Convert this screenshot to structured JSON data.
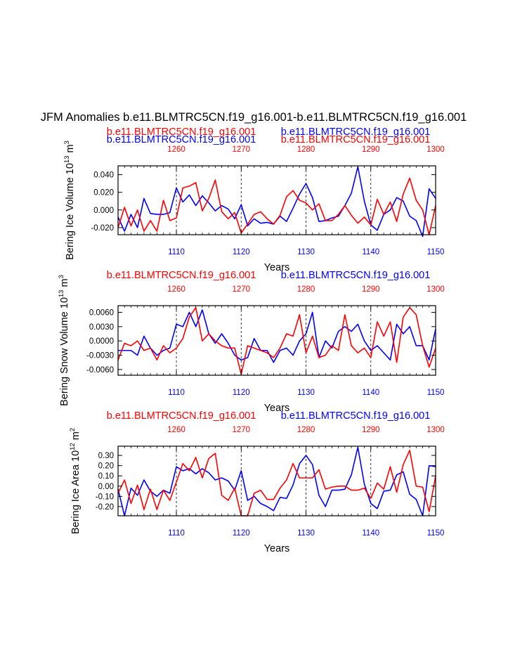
{
  "page_title": "JFM Anomalies b.e11.BLMTRC5CN.f19_g16.001-b.e11.BLMTRC5CN.f19_g16.001",
  "colors": {
    "blue": "#0000ff",
    "red": "#ff0000",
    "black": "#000000"
  },
  "chart_data": [
    {
      "type": "line",
      "title": "JFM Anomalies b.e11.BLMTRC5CN.f19_g16.001-b.e11.BLMTRC5CN.f19_g16.001",
      "ylabel": "Bering Ice Volume 10",
      "ylabel_exp": "13",
      "ylabel_unit": "m",
      "ylabel_unit_exp": "3",
      "xlabel": "Years",
      "top_labels": [
        {
          "text": "b.e11.BLMTRC5CN.f19_g16.001",
          "color": "red",
          "row": 0,
          "col": 0
        },
        {
          "text": "b.e11.BLMTRC5CN.f19_g16.001",
          "color": "blue",
          "row": 0,
          "col": 1
        },
        {
          "text": "b.e11.BLMTRC5CN.f19_g16.001",
          "color": "blue",
          "row": 1,
          "col": 0
        },
        {
          "text": "b.e11.BLMTRC5CN.f19_g16.001",
          "color": "red",
          "row": 1,
          "col": 1
        }
      ],
      "x_bottom": {
        "range": [
          1101,
          1150
        ],
        "ticks": [
          1110,
          1120,
          1130,
          1140,
          1150
        ],
        "tick_labels": [
          "1110",
          "1120",
          "1130",
          "1140",
          "1150"
        ]
      },
      "x_top": {
        "range": [
          1251,
          1300
        ],
        "ticks": [
          1260,
          1270,
          1280,
          1290,
          1300
        ],
        "tick_labels": [
          "1260",
          "1270",
          "1280",
          "1290",
          "1300"
        ]
      },
      "ylim": [
        -0.028,
        0.05
      ],
      "y_ticks": [
        0.04,
        0.02,
        0.0,
        -0.02
      ],
      "y_tick_labels": [
        "0.040",
        "0.020",
        "0.000",
        "-0.020"
      ],
      "series": [
        {
          "name": "b.e11.BLMTRC5CN.f19_g16.001 (years 1101-1150)",
          "color": "blue",
          "values": [
            -0.008,
            -0.024,
            -0.005,
            -0.02,
            0.013,
            -0.004,
            -0.005,
            -0.005,
            -0.003,
            0.025,
            0.009,
            0.017,
            0.005,
            0.016,
            0.008,
            -0.001,
            0.005,
            0.001,
            -0.01,
            0.006,
            -0.018,
            -0.01,
            -0.015,
            -0.014,
            -0.016,
            -0.007,
            -0.013,
            0.002,
            0.018,
            0.03,
            0.014,
            -0.013,
            -0.012,
            -0.009,
            -0.007,
            0.005,
            0.019,
            0.049,
            0.01,
            -0.017,
            -0.023,
            -0.005,
            0.0,
            0.014,
            0.01,
            -0.007,
            -0.012,
            -0.03,
            0.024,
            0.013
          ]
        },
        {
          "name": "b.e11.BLMTRC5CN.f19_g16.001 (years 1251-1300)",
          "color": "red",
          "values": [
            -0.02,
            0.003,
            -0.018,
            0.0,
            -0.024,
            -0.012,
            -0.024,
            0.011,
            -0.012,
            -0.009,
            0.025,
            0.027,
            0.031,
            -0.001,
            0.013,
            0.034,
            -0.002,
            -0.01,
            -0.003,
            -0.026,
            -0.016,
            -0.005,
            -0.002,
            -0.01,
            -0.016,
            -0.006,
            0.015,
            0.022,
            0.011,
            0.008,
            0.0,
            0.007,
            -0.012,
            -0.012,
            -0.005,
            0.005,
            -0.006,
            -0.015,
            -0.008,
            -0.017,
            0.012,
            -0.005,
            0.009,
            -0.013,
            0.018,
            0.036,
            0.011,
            0.0,
            -0.028,
            0.005
          ]
        }
      ]
    },
    {
      "type": "line",
      "ylabel": "Bering Snow Volume 10",
      "ylabel_exp": "13",
      "ylabel_unit": "m",
      "ylabel_unit_exp": "3",
      "xlabel": "Years",
      "top_labels": [
        {
          "text": "b.e11.BLMTRC5CN.f19_g16.001",
          "color": "red",
          "row": 0,
          "col": 0
        },
        {
          "text": "b.e11.BLMTRC5CN.f19_g16.001",
          "color": "blue",
          "row": 0,
          "col": 1
        }
      ],
      "x_bottom": {
        "range": [
          1101,
          1150
        ],
        "ticks": [
          1110,
          1120,
          1130,
          1140,
          1150
        ],
        "tick_labels": [
          "1110",
          "1120",
          "1130",
          "1140",
          "1150"
        ]
      },
      "x_top": {
        "range": [
          1251,
          1300
        ],
        "ticks": [
          1260,
          1270,
          1280,
          1290,
          1300
        ],
        "tick_labels": [
          "1260",
          "1270",
          "1280",
          "1290",
          "1300"
        ]
      },
      "ylim": [
        -0.0072,
        0.0074
      ],
      "y_ticks": [
        0.006,
        0.003,
        0.0,
        -0.003,
        -0.006
      ],
      "y_tick_labels": [
        "0.0060",
        "0.0030",
        "0.0000",
        "-0.0030",
        "-0.0060"
      ],
      "series": [
        {
          "name": "b.e11.BLMTRC5CN.f19_g16.001 (years 1101-1150)",
          "color": "blue",
          "values": [
            -0.002,
            -0.002,
            -0.002,
            -0.003,
            0.001,
            -0.0015,
            -0.003,
            -0.002,
            -0.0015,
            0.0035,
            0.003,
            0.006,
            0.003,
            0.0065,
            0.0015,
            -0.0005,
            0.0015,
            -0.0005,
            -0.003,
            -0.004,
            -0.0035,
            0.0005,
            -0.002,
            -0.002,
            -0.0045,
            -0.002,
            -0.0015,
            -0.003,
            0.0,
            0.0015,
            0.006,
            -0.0035,
            0.0,
            -0.0015,
            0.002,
            0.003,
            0.002,
            0.0035,
            0.0,
            -0.002,
            -0.001,
            -0.0025,
            -0.004,
            0.0035,
            0.0015,
            0.003,
            -0.001,
            -0.001,
            -0.004,
            0.0025
          ]
        },
        {
          "name": "b.e11.BLMTRC5CN.f19_g16.001 (years 1251-1300)",
          "color": "red",
          "values": [
            -0.004,
            -0.0005,
            -0.001,
            0.0,
            -0.002,
            -0.0015,
            -0.004,
            -0.001,
            -0.0025,
            -0.0015,
            0.0005,
            0.005,
            0.007,
            0.0,
            0.0015,
            0.0,
            -0.001,
            -0.0015,
            -0.0015,
            -0.007,
            -0.001,
            -0.0015,
            -0.002,
            -0.0025,
            -0.0035,
            -0.0015,
            0.0015,
            0.001,
            0.0055,
            -0.0025,
            0.001,
            -0.0035,
            -0.003,
            -0.001,
            -0.002,
            0.0055,
            -0.001,
            -0.0025,
            -0.0015,
            -0.0035,
            0.004,
            0.001,
            0.004,
            -0.0045,
            0.005,
            0.007,
            0.0055,
            -0.001,
            -0.0055,
            -0.0015
          ]
        }
      ]
    },
    {
      "type": "line",
      "ylabel": "Bering Ice Area 10",
      "ylabel_exp": "12",
      "ylabel_unit": "m",
      "ylabel_unit_exp": "2",
      "xlabel": "Years",
      "top_labels": [
        {
          "text": "b.e11.BLMTRC5CN.f19_g16.001",
          "color": "red",
          "row": 0,
          "col": 0
        },
        {
          "text": "b.e11.BLMTRC5CN.f19_g16.001",
          "color": "blue",
          "row": 0,
          "col": 1
        }
      ],
      "x_bottom": {
        "range": [
          1101,
          1150
        ],
        "ticks": [
          1110,
          1120,
          1130,
          1140,
          1150
        ],
        "tick_labels": [
          "1110",
          "1120",
          "1130",
          "1140",
          "1150"
        ]
      },
      "x_top": {
        "range": [
          1251,
          1300
        ],
        "ticks": [
          1260,
          1270,
          1280,
          1290,
          1300
        ],
        "tick_labels": [
          "1260",
          "1270",
          "1280",
          "1290",
          "1300"
        ]
      },
      "ylim": [
        -0.29,
        0.39
      ],
      "y_ticks": [
        0.3,
        0.2,
        0.1,
        0.0,
        -0.1,
        -0.2
      ],
      "y_tick_labels": [
        "0.30",
        "0.20",
        "0.10",
        "0.00",
        "-0.10",
        "-0.20"
      ],
      "series": [
        {
          "name": "b.e11.BLMTRC5CN.f19_g16.001 (years 1101-1150)",
          "color": "blue",
          "values": [
            -0.03,
            -0.29,
            -0.02,
            -0.09,
            0.06,
            -0.05,
            -0.1,
            -0.04,
            -0.07,
            0.19,
            0.15,
            0.17,
            0.12,
            0.17,
            0.13,
            0.06,
            0.08,
            0.05,
            -0.04,
            0.15,
            -0.14,
            -0.1,
            -0.17,
            -0.2,
            -0.24,
            -0.11,
            -0.12,
            0.01,
            0.22,
            0.3,
            0.21,
            -0.09,
            -0.2,
            -0.04,
            -0.04,
            -0.03,
            0.11,
            0.38,
            0.02,
            -0.17,
            -0.22,
            -0.05,
            -0.04,
            0.11,
            0.14,
            -0.08,
            -0.13,
            -0.29,
            0.2,
            0.19
          ]
        },
        {
          "name": "b.e11.BLMTRC5CN.f19_g16.001 (years 1251-1300)",
          "color": "red",
          "values": [
            -0.07,
            0.06,
            -0.17,
            0.01,
            -0.23,
            -0.03,
            -0.23,
            -0.04,
            -0.14,
            0.04,
            0.22,
            0.15,
            0.28,
            0.08,
            0.27,
            0.32,
            -0.09,
            -0.14,
            -0.02,
            -0.29,
            -0.29,
            -0.07,
            -0.04,
            -0.13,
            -0.13,
            -0.02,
            0.06,
            0.22,
            0.08,
            0.08,
            0.08,
            0.16,
            -0.03,
            -0.01,
            0.0,
            0.0,
            -0.04,
            -0.04,
            -0.02,
            -0.12,
            0.03,
            -0.03,
            0.19,
            -0.06,
            0.21,
            0.35,
            0.0,
            -0.01,
            -0.25,
            0.1
          ]
        }
      ]
    }
  ]
}
